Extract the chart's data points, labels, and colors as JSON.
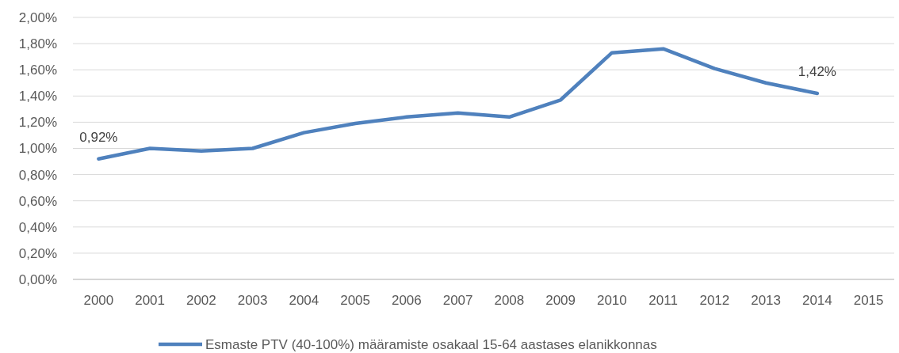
{
  "chart_data": {
    "type": "line",
    "categories": [
      "2000",
      "2001",
      "2002",
      "2003",
      "2004",
      "2005",
      "2006",
      "2007",
      "2008",
      "2009",
      "2010",
      "2011",
      "2012",
      "2013",
      "2014",
      "2015"
    ],
    "series": [
      {
        "name": "Esmaste PTV (40-100%) määramiste osakaal 15-64 aastases elanikkonnas",
        "color": "#4f81bd",
        "values": [
          0.92,
          1.0,
          0.98,
          1.0,
          1.12,
          1.19,
          1.24,
          1.27,
          1.24,
          1.37,
          1.73,
          1.76,
          1.61,
          1.5,
          1.42,
          null
        ],
        "value_labels": [
          "0,92%",
          null,
          null,
          null,
          null,
          null,
          null,
          null,
          null,
          null,
          null,
          null,
          null,
          null,
          "1,42%",
          null
        ]
      }
    ],
    "ylim": [
      0,
      2
    ],
    "yticks": [
      {
        "value": 0,
        "label": "0,00%"
      },
      {
        "value": 0.2,
        "label": "0,20%"
      },
      {
        "value": 0.4,
        "label": "0,40%"
      },
      {
        "value": 0.6,
        "label": "0,60%"
      },
      {
        "value": 0.8,
        "label": "0,80%"
      },
      {
        "value": 1,
        "label": "1,00%"
      },
      {
        "value": 1.2,
        "label": "1,20%"
      },
      {
        "value": 1.4,
        "label": "1,40%"
      },
      {
        "value": 1.6,
        "label": "1,60%"
      },
      {
        "value": 1.8,
        "label": "1,80%"
      },
      {
        "value": 2,
        "label": "2,00%"
      }
    ],
    "grid": "y",
    "legend": "bottom",
    "marker": "none",
    "line_style": "solid"
  }
}
